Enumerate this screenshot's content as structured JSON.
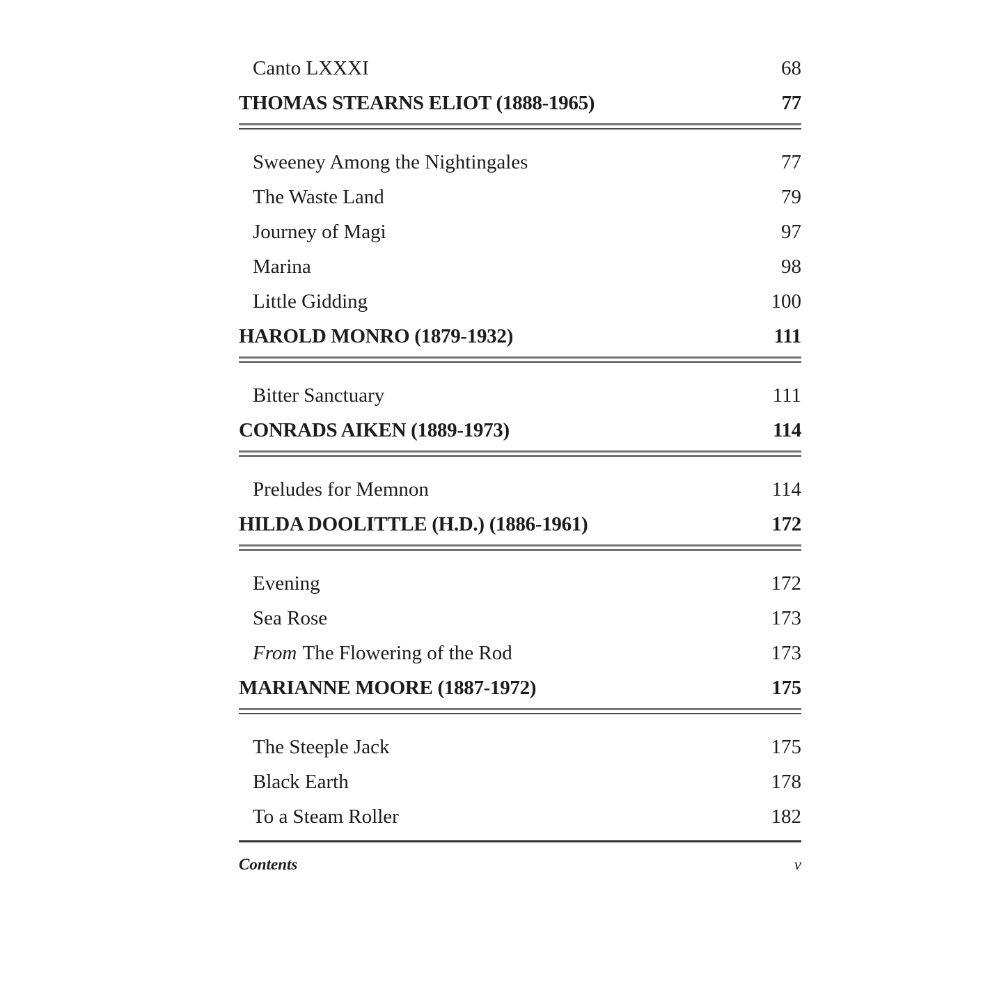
{
  "toc": {
    "rows": [
      {
        "type": "entry",
        "title": "Canto LXXXI",
        "page": "68"
      },
      {
        "type": "author",
        "title": "THOMAS STEARNS ELIOT (1888-1965)",
        "page": "77"
      },
      {
        "type": "entry",
        "title": "Sweeney Among the Nightingales",
        "page": "77"
      },
      {
        "type": "entry",
        "title": "The Waste Land",
        "page": "79"
      },
      {
        "type": "entry",
        "title": "Journey of Magi",
        "page": "97"
      },
      {
        "type": "entry",
        "title": "Marina",
        "page": "98"
      },
      {
        "type": "entry",
        "title": "Little Gidding",
        "page": "100"
      },
      {
        "type": "author",
        "title": "HAROLD MONRO (1879-1932)",
        "page": "111"
      },
      {
        "type": "entry",
        "title": "Bitter Sanctuary",
        "page": "111"
      },
      {
        "type": "author",
        "title": "CONRADS AIKEN (1889-1973)",
        "page": "114"
      },
      {
        "type": "entry",
        "title": "Preludes for Memnon",
        "page": "114"
      },
      {
        "type": "author",
        "title": "HILDA DOOLITTLE (H.D.) (1886-1961)",
        "page": "172"
      },
      {
        "type": "entry",
        "title": "Evening",
        "page": "172"
      },
      {
        "type": "entry",
        "title": "Sea Rose",
        "page": "173"
      },
      {
        "type": "entry",
        "title_italic": "From",
        "title": "The Flowering of the Rod",
        "page": "173"
      },
      {
        "type": "author",
        "title": "MARIANNE MOORE (1887-1972)",
        "page": "175"
      },
      {
        "type": "entry",
        "title": "The Steeple Jack",
        "page": "175"
      },
      {
        "type": "entry",
        "title": "Black Earth",
        "page": "178"
      },
      {
        "type": "entry",
        "title": "To a Steam Roller",
        "page": "182"
      }
    ]
  },
  "footer": {
    "left": "Contents",
    "right": "v"
  }
}
